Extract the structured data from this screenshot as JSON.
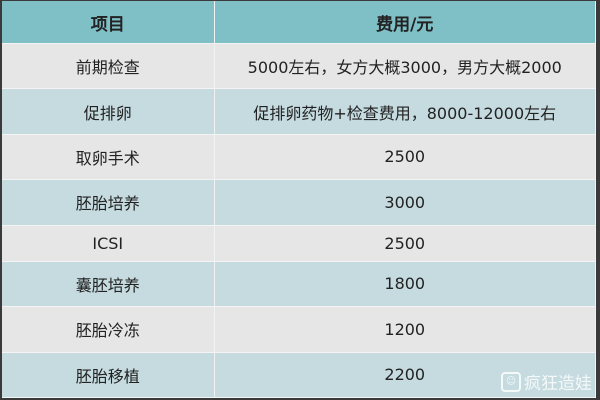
{
  "table": {
    "headers": [
      "项目",
      "费用/元"
    ],
    "rows": [
      [
        "前期检查",
        "5000左右，女方大概3000，男方大概2000"
      ],
      [
        "促排卵",
        "促排卵药物+检查费用，8000-12000左右"
      ],
      [
        "取卵手术",
        "2500"
      ],
      [
        "胚胎培养",
        "3000"
      ],
      [
        "ICSI",
        "2500"
      ],
      [
        "囊胚培养",
        "1800"
      ],
      [
        "胚胎冷冻",
        "1200"
      ],
      [
        "胚胎移植",
        "2200"
      ]
    ]
  },
  "watermark": {
    "text": "疯狂造娃",
    "icon": "logo-icon"
  },
  "colors": {
    "header": "#7fbfc6",
    "row_light": "#e6e6e6",
    "row_blue": "#c5dbe0"
  }
}
